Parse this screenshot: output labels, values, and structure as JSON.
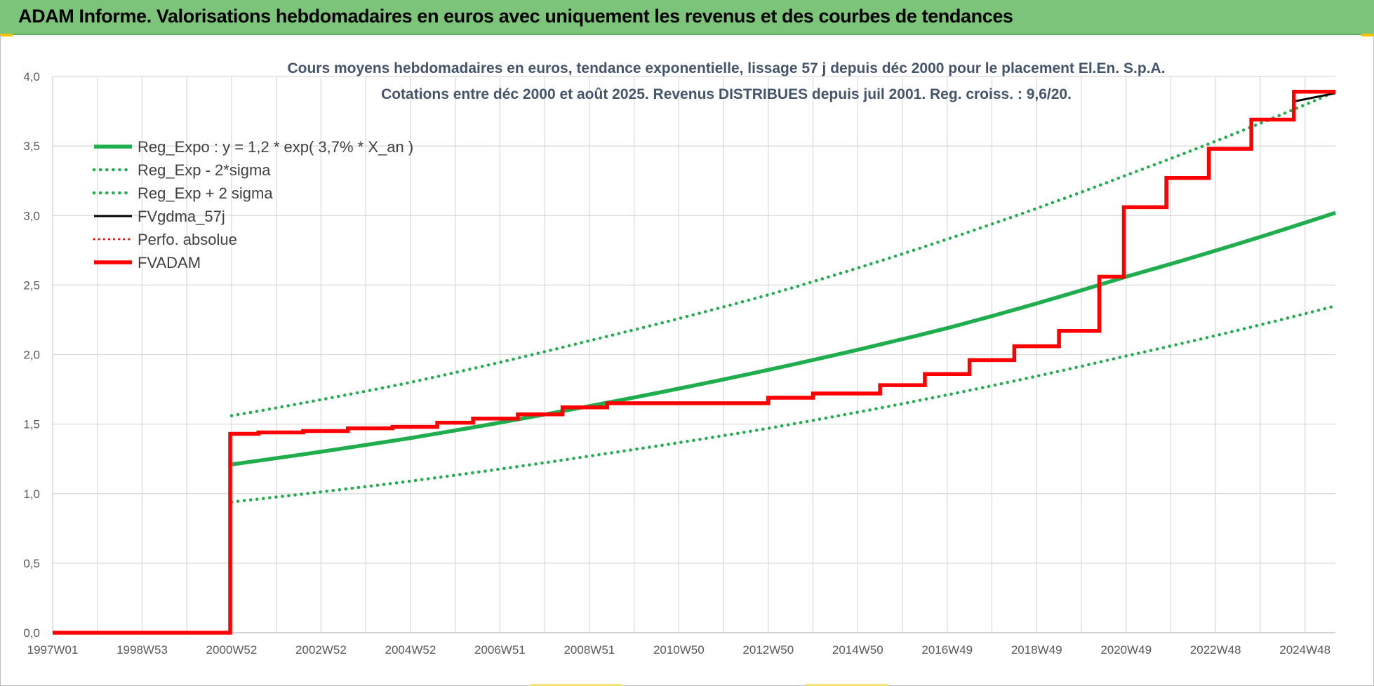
{
  "header": {
    "title": "ADAM Informe. Valorisations hebdomadaires en euros avec uniquement les revenus et des courbes de tendances"
  },
  "colors": {
    "banner": "#7cc47a",
    "trend_green": "#1fad4e",
    "fvgdma_black": "#000000",
    "fvadam_red": "#ff0000",
    "gridline": "#d9d9d9"
  },
  "chart_data": {
    "type": "line",
    "title_lines": [
      "Cours moyens hebdomadaires en euros, tendance exponentielle, lissage 57 j depuis déc 2000 pour le placement El.En. S.p.A.",
      "Cotations entre déc 2000 et août 2025. Revenus DISTRIBUES depuis juil 2001. Reg. croiss. : 9,6/20."
    ],
    "xlabel": "",
    "ylabel": "",
    "x_tick_labels": [
      "1997W01",
      "1998W53",
      "2000W52",
      "2002W52",
      "2004W52",
      "2006W51",
      "2008W51",
      "2010W50",
      "2012W50",
      "2014W50",
      "2016W49",
      "2018W49",
      "2020W49",
      "2022W48",
      "2024W48"
    ],
    "x_tick_years": [
      1997.0,
      1999.0,
      2001.0,
      2003.0,
      2005.0,
      2007.0,
      2009.0,
      2011.0,
      2013.0,
      2015.0,
      2017.0,
      2019.0,
      2021.0,
      2023.0,
      2025.0
    ],
    "x_range_years": [
      1997.0,
      2025.68
    ],
    "y_tick_labels": [
      "0,0",
      "0,5",
      "1,0",
      "1,5",
      "2,0",
      "2,5",
      "3,0",
      "3,5",
      "4,0"
    ],
    "ylim": [
      0,
      4.0
    ],
    "grid": true,
    "legend_position": "top-left",
    "series": [
      {
        "name": "Reg_Expo : y = 1,2 * exp( 3,7% *  X_an )",
        "style": "solid-thick-green",
        "x_start_year": 2001.0,
        "x_end_year": 2025.68,
        "points": [
          [
            2001.0,
            1.21
          ],
          [
            2005.0,
            1.4
          ],
          [
            2009.0,
            1.63
          ],
          [
            2013.0,
            1.89
          ],
          [
            2017.0,
            2.19
          ],
          [
            2021.0,
            2.56
          ],
          [
            2025.68,
            3.02
          ]
        ]
      },
      {
        "name": "Reg_Exp - 2*sigma",
        "style": "dotted-green",
        "points": [
          [
            2001.0,
            0.94
          ],
          [
            2005.0,
            1.09
          ],
          [
            2009.0,
            1.27
          ],
          [
            2013.0,
            1.47
          ],
          [
            2017.0,
            1.71
          ],
          [
            2021.0,
            1.99
          ],
          [
            2025.68,
            2.35
          ]
        ]
      },
      {
        "name": "Reg_Exp + 2 sigma",
        "style": "dotted-green",
        "points": [
          [
            2001.0,
            1.56
          ],
          [
            2005.0,
            1.8
          ],
          [
            2009.0,
            2.1
          ],
          [
            2013.0,
            2.43
          ],
          [
            2017.0,
            2.83
          ],
          [
            2021.0,
            3.29
          ],
          [
            2025.68,
            3.89
          ]
        ]
      },
      {
        "name": "FVgdma_57j",
        "style": "solid-black",
        "step_points": [
          [
            1997.0,
            0.0
          ],
          [
            2000.97,
            0.0
          ],
          [
            2000.97,
            1.43
          ],
          [
            2001.6,
            1.43
          ],
          [
            2001.6,
            1.44
          ],
          [
            2002.6,
            1.44
          ],
          [
            2002.6,
            1.45
          ],
          [
            2003.6,
            1.45
          ],
          [
            2003.6,
            1.47
          ],
          [
            2004.6,
            1.47
          ],
          [
            2004.6,
            1.48
          ],
          [
            2005.6,
            1.48
          ],
          [
            2005.6,
            1.51
          ],
          [
            2006.4,
            1.51
          ],
          [
            2006.4,
            1.54
          ],
          [
            2007.4,
            1.54
          ],
          [
            2007.4,
            1.57
          ],
          [
            2008.4,
            1.57
          ],
          [
            2008.4,
            1.62
          ],
          [
            2009.4,
            1.62
          ],
          [
            2009.4,
            1.65
          ],
          [
            2013.0,
            1.65
          ],
          [
            2013.0,
            1.69
          ],
          [
            2014.0,
            1.69
          ],
          [
            2014.0,
            1.72
          ],
          [
            2015.5,
            1.72
          ],
          [
            2015.5,
            1.78
          ],
          [
            2016.5,
            1.78
          ],
          [
            2016.5,
            1.86
          ],
          [
            2017.5,
            1.86
          ],
          [
            2017.5,
            1.96
          ],
          [
            2018.5,
            1.96
          ],
          [
            2018.5,
            2.06
          ],
          [
            2019.5,
            2.06
          ],
          [
            2019.5,
            2.17
          ],
          [
            2020.4,
            2.17
          ],
          [
            2020.4,
            2.56
          ],
          [
            2020.95,
            2.56
          ],
          [
            2020.95,
            3.06
          ],
          [
            2021.9,
            3.06
          ],
          [
            2021.9,
            3.27
          ],
          [
            2022.85,
            3.27
          ],
          [
            2022.85,
            3.48
          ],
          [
            2023.8,
            3.48
          ],
          [
            2023.8,
            3.69
          ],
          [
            2024.75,
            3.69
          ],
          [
            2024.75,
            3.82
          ],
          [
            2025.68,
            3.88
          ]
        ]
      },
      {
        "name": "Perfo. absolue",
        "style": "dotted-red",
        "step_points": []
      },
      {
        "name": "FVADAM",
        "style": "solid-thick-red",
        "step_points": [
          [
            1997.0,
            0.0
          ],
          [
            2000.97,
            0.0
          ],
          [
            2000.97,
            1.43
          ],
          [
            2001.6,
            1.43
          ],
          [
            2001.6,
            1.44
          ],
          [
            2002.6,
            1.44
          ],
          [
            2002.6,
            1.45
          ],
          [
            2003.6,
            1.45
          ],
          [
            2003.6,
            1.47
          ],
          [
            2004.6,
            1.47
          ],
          [
            2004.6,
            1.48
          ],
          [
            2005.6,
            1.48
          ],
          [
            2005.6,
            1.51
          ],
          [
            2006.4,
            1.51
          ],
          [
            2006.4,
            1.54
          ],
          [
            2007.4,
            1.54
          ],
          [
            2007.4,
            1.57
          ],
          [
            2008.4,
            1.57
          ],
          [
            2008.4,
            1.62
          ],
          [
            2009.4,
            1.62
          ],
          [
            2009.4,
            1.65
          ],
          [
            2013.0,
            1.65
          ],
          [
            2013.0,
            1.69
          ],
          [
            2014.0,
            1.69
          ],
          [
            2014.0,
            1.72
          ],
          [
            2015.5,
            1.72
          ],
          [
            2015.5,
            1.78
          ],
          [
            2016.5,
            1.78
          ],
          [
            2016.5,
            1.86
          ],
          [
            2017.5,
            1.86
          ],
          [
            2017.5,
            1.96
          ],
          [
            2018.5,
            1.96
          ],
          [
            2018.5,
            2.06
          ],
          [
            2019.5,
            2.06
          ],
          [
            2019.5,
            2.17
          ],
          [
            2020.4,
            2.17
          ],
          [
            2020.4,
            2.56
          ],
          [
            2020.95,
            2.56
          ],
          [
            2020.95,
            3.06
          ],
          [
            2021.9,
            3.06
          ],
          [
            2021.9,
            3.27
          ],
          [
            2022.85,
            3.27
          ],
          [
            2022.85,
            3.48
          ],
          [
            2023.8,
            3.48
          ],
          [
            2023.8,
            3.69
          ],
          [
            2024.75,
            3.69
          ],
          [
            2024.75,
            3.89
          ],
          [
            2025.68,
            3.89
          ]
        ]
      }
    ]
  }
}
